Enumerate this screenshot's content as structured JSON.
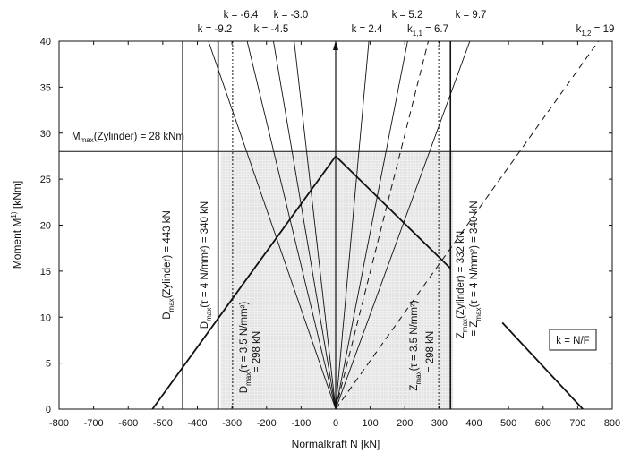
{
  "chart_data": {
    "type": "line",
    "xlabel": "Normalkraft N [kN]",
    "ylabel": "Moment M",
    "ylabel_sup": "1)",
    "ylabel_unit": "[kNm]",
    "xlim": [
      -800,
      800
    ],
    "ylim": [
      0,
      40
    ],
    "xticks": [
      -800,
      -700,
      -600,
      -500,
      -400,
      -300,
      -200,
      -100,
      0,
      100,
      200,
      300,
      400,
      500,
      600,
      700,
      800
    ],
    "yticks": [
      0,
      5,
      10,
      15,
      20,
      25,
      30,
      35,
      40
    ],
    "shaded_region": {
      "x": [
        -332,
        340
      ],
      "y": [
        0,
        28
      ]
    },
    "m_max": {
      "value": 28,
      "label": "M",
      "label_sub": "max",
      "label_rest": "(Zylinder) = 28 kNm"
    },
    "envelope": {
      "x": [
        -530,
        0,
        332
      ],
      "y": [
        0,
        27.5,
        15.3
      ]
    },
    "envelope_tail": {
      "x": [
        482,
        715
      ],
      "y": [
        9.4,
        0
      ]
    },
    "rays_solid": [
      {
        "k": -9.2,
        "label": "k = -9.2"
      },
      {
        "k": -6.4,
        "label": "k = -6.4"
      },
      {
        "k": -4.5,
        "label": "k = -4.5"
      },
      {
        "k": -3.0,
        "label": "k = -3.0"
      },
      {
        "k": 2.4,
        "label": "k = 2.4"
      },
      {
        "k": 5.2,
        "label": "k = 5.2"
      },
      {
        "k": 9.7,
        "label": "k = 9.7"
      }
    ],
    "rays_dashed": [
      {
        "k": 6.7,
        "label_pre": "k",
        "label_sub": "1,1",
        "label_post": " = 6.7"
      },
      {
        "k": 19,
        "label_pre": "k",
        "label_sub": "1,2",
        "label_post": " = 19"
      }
    ],
    "vertical_lines": [
      {
        "x": -443,
        "style": "solid",
        "label_pre": "D",
        "label_sub": "max",
        "label_post": "(Zylinder) = 443 kN"
      },
      {
        "x": -340,
        "style": "solid",
        "label_pre": "D",
        "label_sub": "max",
        "label_post": "(τ = 4 N/mm²) = 340 kN"
      },
      {
        "x": -298,
        "style": "dotted",
        "label_pre": "D",
        "label_sub": "max",
        "label_post": "(τ = 3.5 N/mm²)",
        "label_line2": "= 298 kN"
      },
      {
        "x": 298,
        "style": "dotted",
        "label_pre": "Z",
        "label_sub": "max",
        "label_post": "(τ = 3.5 N/mm²)",
        "label_line2": "= 298 kN"
      },
      {
        "x": 332,
        "style": "solid",
        "label_pre": "Z",
        "label_sub": "max",
        "label_post": "(Zylinder) = 332 kN",
        "label_line2_pre": "= Z",
        "label_line2_sub": "max",
        "label_line2_post": "(τ = 4 N/mm²) = 340 kN"
      }
    ],
    "legend_box": "k = N/F"
  }
}
